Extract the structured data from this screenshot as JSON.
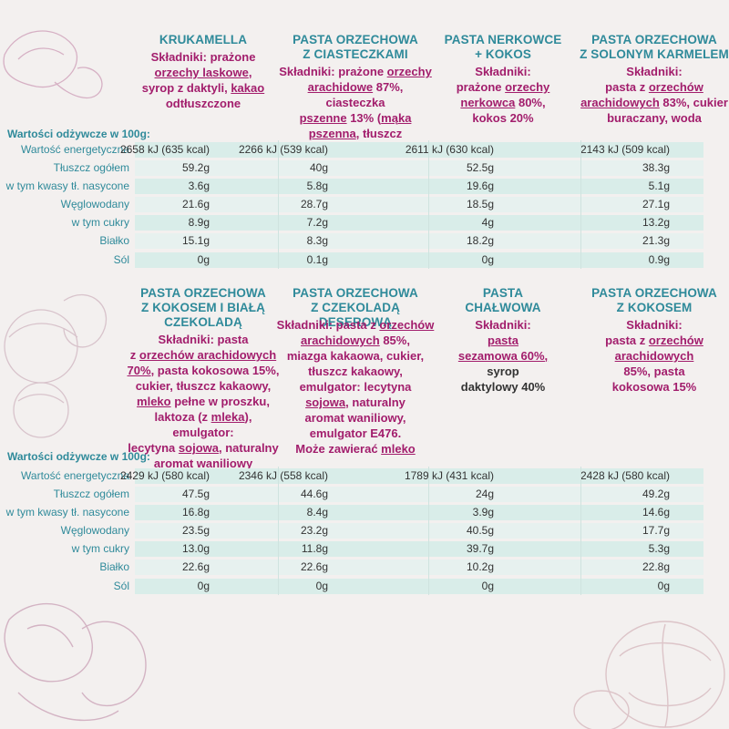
{
  "colors": {
    "title": "#2f8a9a",
    "ingredient": "#a21d6c",
    "row_band": "#d9ede9",
    "background": "#f3f0ef"
  },
  "section1": {
    "products": [
      {
        "title": [
          "KRUKAMELLA"
        ],
        "ing": [
          [
            {
              "t": "Składniki: prażone"
            }
          ],
          [
            {
              "t": "orzechy laskowe",
              "u": true
            },
            {
              "t": ","
            }
          ],
          [
            {
              "t": "syrop z daktyli, "
            },
            {
              "t": "kakao",
              "u": true
            }
          ],
          [
            {
              "t": "odtłuszczone"
            }
          ]
        ]
      },
      {
        "title": [
          "PASTA ORZECHOWA",
          "Z CIASTECZKAMI"
        ],
        "ing": [
          [
            {
              "t": "Składniki: prażone "
            },
            {
              "t": "orzechy",
              "u": true
            }
          ],
          [
            {
              "t": "arachidowe",
              "u": true
            },
            {
              "t": " 87%, ciasteczka"
            }
          ],
          [
            {
              "t": "pszenne",
              "u": true
            },
            {
              "t": " 13% ("
            },
            {
              "t": "mąka",
              "u": true
            }
          ],
          [
            {
              "t": "pszenna",
              "u": true
            },
            {
              "t": ", tłuszcz kokosowy)"
            }
          ]
        ]
      },
      {
        "title": [
          "PASTA NERKOWCE",
          "+ KOKOS"
        ],
        "ing": [
          [
            {
              "t": "Składniki:"
            }
          ],
          [
            {
              "t": "prażone "
            },
            {
              "t": "orzechy",
              "u": true
            }
          ],
          [
            {
              "t": "nerkowca",
              "u": true
            },
            {
              "t": " 80%,"
            }
          ],
          [
            {
              "t": "kokos 20%"
            }
          ]
        ]
      },
      {
        "title": [
          "PASTA ORZECHOWA",
          "Z SOLONYM KARMELEM"
        ],
        "ing": [
          [
            {
              "t": "Składniki:"
            }
          ],
          [
            {
              "t": "pasta z "
            },
            {
              "t": "orzechów",
              "u": true
            }
          ],
          [
            {
              "t": "arachidowych",
              "u": true
            },
            {
              "t": " 83%, cukier"
            }
          ],
          [
            {
              "t": "buraczany, woda"
            }
          ]
        ]
      }
    ],
    "header": "Wartości odżywcze w 100g:",
    "rows": [
      {
        "label": "Wartość energetyczna",
        "values": [
          "2658 kJ (635 kcal)",
          "2266 kJ (539 kcal)",
          "2611 kJ (630 kcal)",
          "2143 kJ (509 kcal)"
        ]
      },
      {
        "label": "Tłuszcz ogółem",
        "values": [
          "59.2g",
          "40g",
          "52.5g",
          "38.3g"
        ]
      },
      {
        "label": "w tym kwasy tł. nasycone",
        "values": [
          "3.6g",
          "5.8g",
          "19.6g",
          "5.1g"
        ]
      },
      {
        "label": "Węglowodany",
        "values": [
          "21.6g",
          "28.7g",
          "18.5g",
          "27.1g"
        ]
      },
      {
        "label": "w tym cukry",
        "values": [
          "8.9g",
          "7.2g",
          "4g",
          "13.2g"
        ]
      },
      {
        "label": "Białko",
        "values": [
          "15.1g",
          "8.3g",
          "18.2g",
          "21.3g"
        ]
      },
      {
        "label": "Sól",
        "values": [
          "0g",
          "0.1g",
          "0g",
          "0.9g"
        ]
      }
    ]
  },
  "section2": {
    "products": [
      {
        "title": [
          "PASTA ORZECHOWA",
          "Z KOKOSEM I BIAŁĄ",
          "CZEKOLADĄ"
        ],
        "ing": [
          [
            {
              "t": "Składniki: pasta"
            }
          ],
          [
            {
              "t": "z "
            },
            {
              "t": "orzechów arachidowych",
              "u": true
            }
          ],
          [
            {
              "t": "70%",
              "u": true
            },
            {
              "t": ", pasta kokosowa 15%,"
            }
          ],
          [
            {
              "t": "cukier, tłuszcz kakaowy,"
            }
          ],
          [
            {
              "t": "mleko",
              "u": true
            },
            {
              "t": " pełne w proszku,"
            }
          ],
          [
            {
              "t": "laktoza (z "
            },
            {
              "t": "mleka",
              "u": true
            },
            {
              "t": "), emulgator:"
            }
          ],
          [
            {
              "t": "lecytyna "
            },
            {
              "t": "sojowa",
              "u": true
            },
            {
              "t": ", naturalny"
            }
          ],
          [
            {
              "t": "aromat waniliowy"
            }
          ]
        ]
      },
      {
        "title": [
          "PASTA ORZECHOWA",
          "Z CZEKOLADĄ DESEROWĄ"
        ],
        "ing": [
          [
            {
              "t": "Składniki: pasta z "
            },
            {
              "t": "orzechów",
              "u": true
            }
          ],
          [
            {
              "t": "arachidowych",
              "u": true
            },
            {
              "t": " 85%,"
            }
          ],
          [
            {
              "t": "miazga kakaowa, cukier,"
            }
          ],
          [
            {
              "t": "tłuszcz kakaowy,"
            }
          ],
          [
            {
              "t": "emulgator: lecytyna"
            }
          ],
          [
            {
              "t": "sojowa",
              "u": true
            },
            {
              "t": ", naturalny"
            }
          ],
          [
            {
              "t": "aromat waniliowy,"
            }
          ],
          [
            {
              "t": "emulgator E476."
            }
          ],
          [
            {
              "t": "Może zawierać "
            },
            {
              "t": "mleko",
              "u": true
            }
          ]
        ]
      },
      {
        "title": [
          "PASTA",
          "CHAŁWOWA"
        ],
        "ing": [
          [
            {
              "t": "Składniki:"
            }
          ],
          [
            {
              "t": "pasta",
              "u": true
            }
          ],
          [
            {
              "t": "sezamowa 60%,",
              "u": true
            }
          ],
          [
            {
              "t": "syrop",
              "plain": true
            }
          ],
          [
            {
              "t": "daktylowy 40%",
              "plain": true
            }
          ]
        ]
      },
      {
        "title": [
          "PASTA ORZECHOWA",
          "Z KOKOSEM"
        ],
        "ing": [
          [
            {
              "t": "Składniki:"
            }
          ],
          [
            {
              "t": "pasta z "
            },
            {
              "t": "orzechów",
              "u": true
            }
          ],
          [
            {
              "t": "arachidowych",
              "u": true
            }
          ],
          [
            {
              "t": "85%, pasta"
            }
          ],
          [
            {
              "t": "kokosowa 15%"
            }
          ]
        ]
      }
    ],
    "header": "Wartości odżywcze w 100g:",
    "rows": [
      {
        "label": "Wartość energetyczna",
        "values": [
          "2429 kJ (580 kcal)",
          "2346 kJ (558 kcal)",
          "1789 kJ (431 kcal)",
          "2428 kJ (580 kcal)"
        ]
      },
      {
        "label": "Tłuszcz ogółem",
        "values": [
          "47.5g",
          "44.6g",
          "24g",
          "49.2g"
        ]
      },
      {
        "label": "w tym kwasy tł. nasycone",
        "values": [
          "16.8g",
          "8.4g",
          "3.9g",
          "14.6g"
        ]
      },
      {
        "label": "Węglowodany",
        "values": [
          "23.5g",
          "23.2g",
          "40.5g",
          "17.7g"
        ]
      },
      {
        "label": "w tym cukry",
        "values": [
          "13.0g",
          "11.8g",
          "39.7g",
          "5.3g"
        ]
      },
      {
        "label": "Białko",
        "values": [
          "22.6g",
          "22.6g",
          "10.2g",
          "22.8g"
        ]
      },
      {
        "label": "Sól",
        "values": [
          "0g",
          "0g",
          "0g",
          "0g"
        ]
      }
    ]
  }
}
